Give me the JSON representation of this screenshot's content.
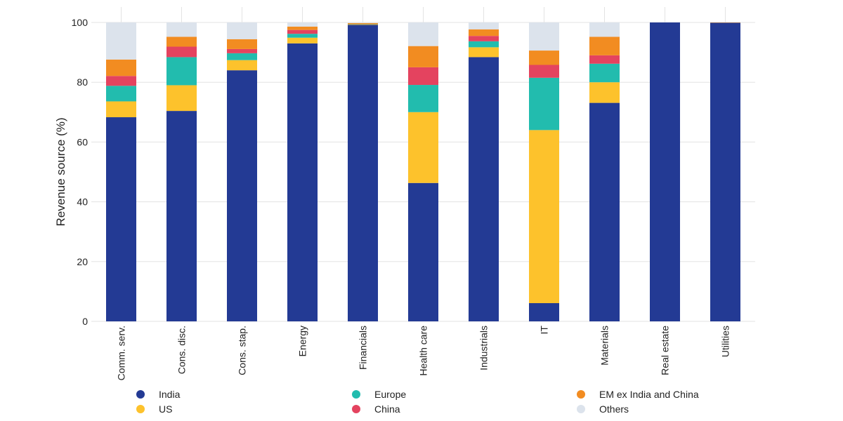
{
  "chart_data": {
    "type": "bar",
    "stacked": true,
    "title": "",
    "xlabel": "",
    "ylabel": "Revenue source (%)",
    "ylim": [
      0,
      100
    ],
    "yticks": [
      0,
      20,
      40,
      60,
      80,
      100
    ],
    "grid": true,
    "legend_position": "bottom",
    "categories": [
      "Comm. serv.",
      "Cons. disc.",
      "Cons. stap.",
      "Energy",
      "Financials",
      "Health care",
      "Industrials",
      "IT",
      "Materials",
      "Real estate",
      "Utilities"
    ],
    "series": [
      {
        "name": "India",
        "color": "#233a94",
        "values": [
          68.3,
          70.4,
          84.0,
          93.0,
          99.2,
          46.3,
          88.4,
          6.1,
          73.1,
          100.0,
          99.9
        ]
      },
      {
        "name": "US",
        "color": "#fdc22c",
        "values": [
          5.3,
          8.6,
          3.4,
          1.9,
          0.1,
          23.7,
          3.3,
          57.9,
          6.9,
          0.0,
          0.0
        ]
      },
      {
        "name": "Europe",
        "color": "#22bcae",
        "values": [
          5.2,
          9.4,
          2.3,
          1.3,
          0.1,
          9.1,
          2.0,
          17.5,
          6.2,
          0.0,
          0.0
        ]
      },
      {
        "name": "China",
        "color": "#e4435f",
        "values": [
          3.3,
          3.5,
          1.4,
          1.3,
          0.0,
          5.9,
          1.8,
          4.3,
          2.8,
          0.0,
          0.0
        ]
      },
      {
        "name": "EM ex India and China",
        "color": "#f28c21",
        "values": [
          5.5,
          3.3,
          3.3,
          1.1,
          0.4,
          7.1,
          2.2,
          4.8,
          6.2,
          0.0,
          0.1
        ]
      },
      {
        "name": "Others",
        "color": "#dce3ec",
        "values": [
          12.4,
          4.8,
          5.6,
          1.4,
          0.2,
          7.9,
          2.3,
          9.4,
          4.8,
          0.0,
          0.0
        ]
      }
    ],
    "legend": [
      {
        "label": "India",
        "color": "#233a94"
      },
      {
        "label": "US",
        "color": "#fdc22c"
      },
      {
        "label": "Europe",
        "color": "#22bcae"
      },
      {
        "label": "China",
        "color": "#e4435f"
      },
      {
        "label": "EM ex India and China",
        "color": "#f28c21"
      },
      {
        "label": "Others",
        "color": "#dce3ec"
      }
    ]
  }
}
